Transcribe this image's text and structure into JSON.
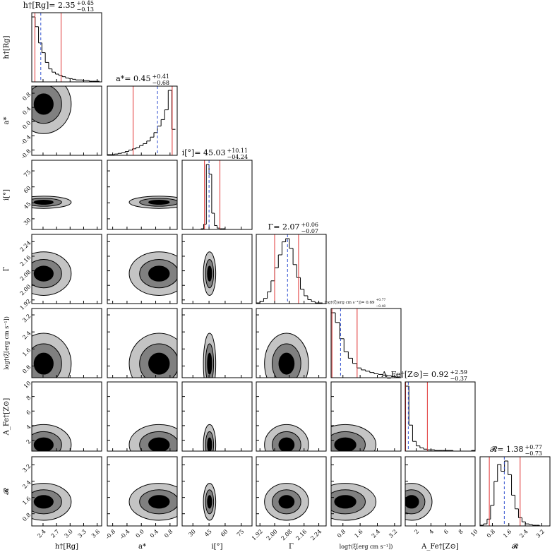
{
  "chart_data": {
    "type": "corner",
    "hist_color": "#000000",
    "quantile_color": "#e03030",
    "median_color": "#3050d0",
    "contour_colors": [
      "#c4c4c4",
      "#808080",
      "#000000"
    ],
    "params": [
      {
        "label": "h†[Rg]",
        "title": "h†[Rg]= 2.35",
        "plus": "+0.45",
        "minus": "−0.13",
        "median": 2.35,
        "quantiles": [
          2.22,
          2.8
        ],
        "xlim": [
          2.15,
          3.7
        ],
        "ticks": [
          2.4,
          2.7,
          {
            "value": 3,
            "label": "3.0"
          },
          3.3,
          3.6
        ],
        "bins": [
          2.15,
          2.225,
          2.3,
          2.375,
          2.45,
          2.525,
          2.6,
          2.675,
          2.75,
          2.825,
          2.9,
          2.975,
          3.05,
          3.125,
          3.2,
          3.275,
          3.35,
          3.425,
          3.5,
          3.575,
          3.65
        ],
        "counts": [
          100,
          85,
          60,
          45,
          30,
          20,
          15,
          12,
          10,
          8,
          6,
          5,
          4,
          3,
          3,
          2,
          2,
          1,
          1,
          1
        ]
      },
      {
        "label": "a*",
        "title": "a*= 0.45",
        "plus": "+0.41",
        "minus": "−0.68",
        "median": 0.45,
        "quantiles": [
          -0.23,
          0.86
        ],
        "xlim": [
          -0.95,
          1.0
        ],
        "ticks": [
          -0.8,
          -0.4,
          {
            "value": 0,
            "label": "0.0"
          },
          0.4,
          0.8
        ],
        "bins": [
          -0.95,
          -0.85,
          -0.75,
          -0.65,
          -0.55,
          -0.45,
          -0.35,
          -0.25,
          -0.15,
          -0.05,
          0.05,
          0.15,
          0.25,
          0.35,
          0.45,
          0.55,
          0.65,
          0.75,
          0.85,
          0.95
        ],
        "counts": [
          1,
          1,
          2,
          3,
          4,
          6,
          8,
          10,
          12,
          15,
          18,
          22,
          28,
          35,
          45,
          55,
          70,
          100,
          40
        ]
      },
      {
        "label": "i[°]",
        "title": "i[°]= 45.03",
        "plus": "+10.11",
        "minus": "−04.24",
        "median": 45.03,
        "quantiles": [
          40.79,
          55.14
        ],
        "xlim": [
          20,
          85
        ],
        "ticks": [
          30,
          45,
          60,
          75
        ],
        "bins": [
          20,
          22.5,
          25,
          27.5,
          30,
          32.5,
          35,
          37.5,
          40,
          42.5,
          45,
          47.5,
          50,
          52.5,
          55,
          57.5,
          60,
          62.5,
          65,
          67.5,
          70,
          72.5,
          75,
          77.5,
          80,
          82.5,
          85
        ],
        "counts": [
          0,
          0,
          0,
          0,
          0,
          0,
          0,
          1,
          8,
          100,
          85,
          25,
          6,
          2,
          1,
          1,
          0,
          0,
          0,
          0,
          0,
          0,
          0,
          0,
          0,
          0
        ]
      },
      {
        "label": "Γ",
        "title": "Γ= 2.07",
        "plus": "+0.06",
        "minus": "−0.07",
        "median": 2.07,
        "quantiles": [
          2.0,
          2.13
        ],
        "xlim": [
          1.9,
          2.28
        ],
        "ticks": [
          1.92,
          {
            "value": 2,
            "label": "2.00"
          },
          2.08,
          2.16,
          2.24
        ],
        "bins": [
          1.9,
          1.92,
          1.94,
          1.96,
          1.98,
          2.0,
          2.02,
          2.04,
          2.06,
          2.08,
          2.1,
          2.12,
          2.14,
          2.16,
          2.18,
          2.2,
          2.22,
          2.24,
          2.26
        ],
        "counts": [
          1,
          3,
          8,
          18,
          35,
          55,
          75,
          95,
          100,
          85,
          60,
          40,
          22,
          12,
          6,
          3,
          1,
          1
        ]
      },
      {
        "label": "log†(ξ[erg cm s⁻¹])",
        "title": "log†(ξ[erg cm s⁻¹])= 0.69",
        "plus": "+0.77",
        "minus": "−0.40",
        "median": 0.69,
        "quantiles": [
          0.29,
          1.46
        ],
        "xlim": [
          0.25,
          3.5
        ],
        "ticks": [
          0.8,
          1.6,
          2.4,
          3.2
        ],
        "bins": [
          0.25,
          0.45,
          0.65,
          0.85,
          1.05,
          1.25,
          1.45,
          1.65,
          1.85,
          2.05,
          2.25,
          2.45,
          2.65,
          2.85,
          3.05,
          3.25,
          3.45
        ],
        "counts": [
          100,
          85,
          60,
          40,
          30,
          22,
          15,
          12,
          10,
          8,
          6,
          5,
          4,
          3,
          2,
          1
        ]
      },
      {
        "label": "A_Fe†[Z⊙]",
        "title": "A_Fe†[Z⊙]= 0.92",
        "plus": "+2.59",
        "minus": "−0.37",
        "median": 0.92,
        "quantiles": [
          0.55,
          3.51
        ],
        "xlim": [
          0.5,
          10
        ],
        "ticks": [
          2,
          4,
          6,
          8,
          10
        ],
        "bins": [
          0.5,
          1,
          1.5,
          2,
          2.5,
          3,
          3.5,
          4,
          4.5,
          5,
          5.5,
          6,
          6.5,
          7,
          7.5,
          8,
          8.5,
          9,
          9.5,
          10
        ],
        "counts": [
          100,
          40,
          15,
          8,
          5,
          3,
          2,
          2,
          1,
          1,
          1,
          1,
          1,
          0,
          0,
          0,
          0,
          0,
          1
        ]
      },
      {
        "label": "𝓡",
        "title": "𝓡= 1.38",
        "plus": "+0.77",
        "minus": "−0.73",
        "median": 1.38,
        "quantiles": [
          0.65,
          2.15
        ],
        "xlim": [
          0.2,
          3.6
        ],
        "ticks": [
          0.8,
          1.6,
          2.4,
          3.2
        ],
        "bins": [
          0.2,
          0.37,
          0.54,
          0.71,
          0.88,
          1.05,
          1.22,
          1.39,
          1.56,
          1.73,
          1.9,
          2.07,
          2.24,
          2.41,
          2.58,
          2.75,
          2.92,
          3.09,
          3.26,
          3.43,
          3.6
        ],
        "counts": [
          1,
          3,
          10,
          30,
          65,
          90,
          80,
          95,
          75,
          45,
          25,
          12,
          6,
          3,
          2,
          1,
          1,
          0,
          0,
          0
        ]
      }
    ]
  }
}
